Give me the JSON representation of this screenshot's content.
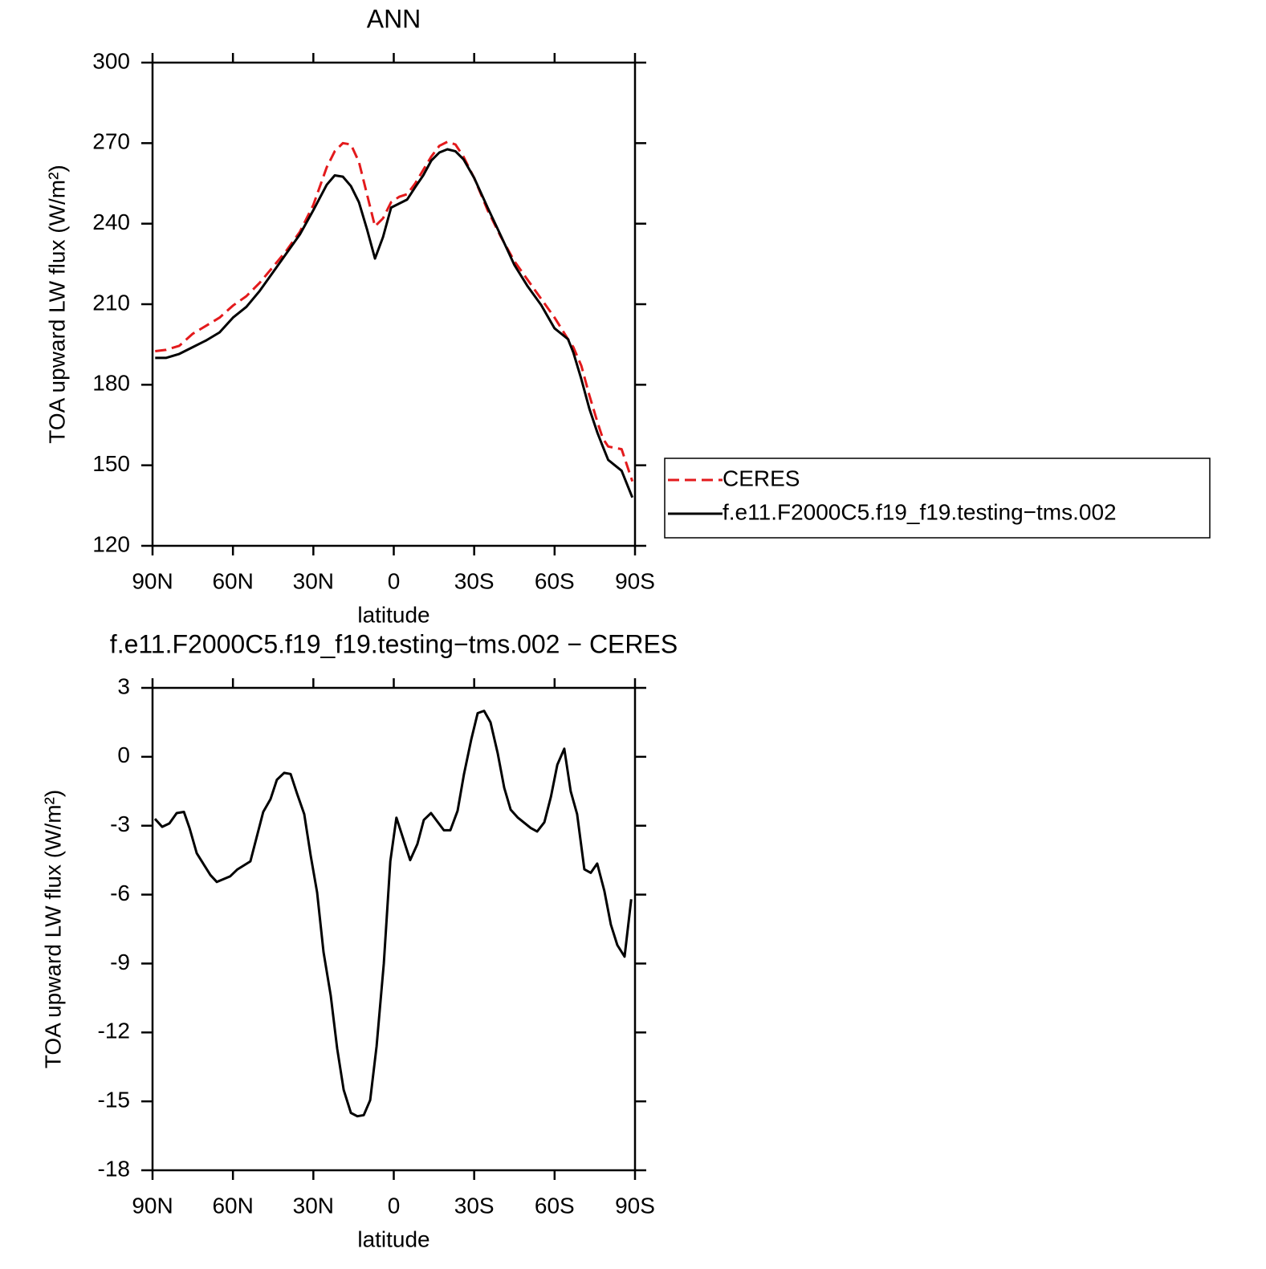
{
  "chart_data": [
    {
      "type": "line",
      "title": "ANN",
      "xlabel": "latitude",
      "ylabel": "TOA upward LW flux (W/m²)",
      "x": [
        89,
        85,
        80,
        75,
        70,
        65,
        60,
        55,
        50,
        45,
        40,
        35,
        30,
        25,
        22,
        19,
        16,
        13,
        10,
        7,
        4,
        1,
        -2,
        -5,
        -8,
        -11,
        -14,
        -17,
        -20,
        -23,
        -26,
        -30,
        -35,
        -40,
        -45,
        -50,
        -55,
        -60,
        -65,
        -67,
        -70,
        -73,
        -76,
        -78,
        -80,
        -85,
        -89
      ],
      "series": [
        {
          "name": "CERES",
          "color": "#e31a1c",
          "linestyle": "dashed",
          "values": [
            192.5,
            193,
            194.5,
            199,
            202,
            205,
            209.5,
            213,
            218,
            224,
            230,
            237,
            247,
            261,
            267,
            270,
            269.5,
            263,
            251,
            239,
            242,
            248,
            250,
            251,
            255,
            260,
            265,
            269,
            270.5,
            269.5,
            265,
            257,
            245,
            235,
            226,
            219,
            212,
            205,
            197,
            194,
            187,
            176,
            166,
            160,
            157,
            156,
            144
          ]
        },
        {
          "name": "f.e11.F2000C5.f19_f19.testing−tms.002",
          "color": "#000000",
          "linestyle": "solid",
          "values": [
            190,
            190,
            191.5,
            194,
            196.5,
            199.5,
            205,
            209,
            215,
            222,
            229,
            236,
            245,
            254.5,
            258,
            257.5,
            254,
            248,
            238,
            227,
            235,
            246,
            247.5,
            249,
            253.6,
            258,
            263.5,
            266.5,
            267.7,
            267,
            264,
            257,
            246,
            235.4,
            224.6,
            216.6,
            209.7,
            201,
            197,
            192,
            182,
            171,
            162,
            157,
            152,
            148,
            138
          ]
        }
      ],
      "xlim": [
        90,
        -90
      ],
      "xticks": [
        {
          "value": 90,
          "label": "90N"
        },
        {
          "value": 60,
          "label": "60N"
        },
        {
          "value": 30,
          "label": "30N"
        },
        0,
        {
          "value": -30,
          "label": "30S"
        },
        {
          "value": -60,
          "label": "60S"
        },
        {
          "value": -90,
          "label": "90S"
        }
      ],
      "ylim": [
        120,
        300
      ],
      "yticks": [
        120,
        150,
        180,
        210,
        240,
        270,
        300
      ],
      "legend": "right"
    },
    {
      "type": "line",
      "title": "f.e11.F2000C5.f19_f19.testing−tms.002 − CERES",
      "xlabel": "latitude",
      "ylabel": "TOA upward LW flux (W/m²)",
      "x": [
        89.1,
        86.4,
        83.7,
        81.0,
        78.3,
        76.2,
        73.5,
        68.4,
        66.0,
        61.0,
        58.3,
        53.5,
        48.7,
        46.0,
        43.6,
        40.9,
        38.5,
        36.1,
        33.4,
        31.0,
        28.6,
        26.2,
        23.5,
        21.1,
        18.7,
        16.0,
        13.6,
        11.2,
        8.8,
        6.4,
        3.7,
        1.3,
        -1.0,
        -6.1,
        -8.8,
        -11.2,
        -13.9,
        -18.7,
        -21.1,
        -23.8,
        -26.2,
        -28.9,
        -31.3,
        -33.7,
        -36.1,
        -38.8,
        -41.2,
        -43.6,
        -46.3,
        -51.1,
        -53.5,
        -56.2,
        -58.6,
        -61.0,
        -63.6,
        -66.0,
        -68.4,
        -71.1,
        -73.5,
        -75.9,
        -78.6,
        -81.0,
        -83.4,
        -86.1,
        -88.6
      ],
      "values": [
        -2.7,
        -3.05,
        -2.9,
        -2.45,
        -2.4,
        -3.1,
        -4.2,
        -5.15,
        -5.45,
        -5.2,
        -4.9,
        -4.55,
        -2.4,
        -1.85,
        -1.0,
        -0.7,
        -0.75,
        -1.6,
        -2.5,
        -4.3,
        -5.9,
        -8.5,
        -10.4,
        -12.7,
        -14.5,
        -15.5,
        -15.65,
        -15.6,
        -14.95,
        -12.6,
        -9.0,
        -4.55,
        -2.65,
        -4.5,
        -3.8,
        -2.75,
        -2.45,
        -3.2,
        -3.2,
        -2.35,
        -0.75,
        0.75,
        1.9,
        2.0,
        1.5,
        0.15,
        -1.35,
        -2.3,
        -2.65,
        -3.1,
        -3.25,
        -2.85,
        -1.75,
        -0.35,
        0.35,
        -1.5,
        -2.5,
        -4.9,
        -5.05,
        -4.65,
        -5.85,
        -7.3,
        -8.2,
        -8.7,
        -6.2
      ],
      "color": "#000000",
      "xlim": [
        90,
        -90
      ],
      "xticks": [
        {
          "value": 90,
          "label": "90N"
        },
        {
          "value": 60,
          "label": "60N"
        },
        {
          "value": 30,
          "label": "30N"
        },
        0,
        {
          "value": -30,
          "label": "30S"
        },
        {
          "value": -60,
          "label": "60S"
        },
        {
          "value": -90,
          "label": "90S"
        }
      ],
      "ylim": [
        -18,
        3
      ],
      "yticks": [
        -18,
        -15,
        -12,
        -9,
        -6,
        -3,
        0,
        3
      ]
    }
  ]
}
